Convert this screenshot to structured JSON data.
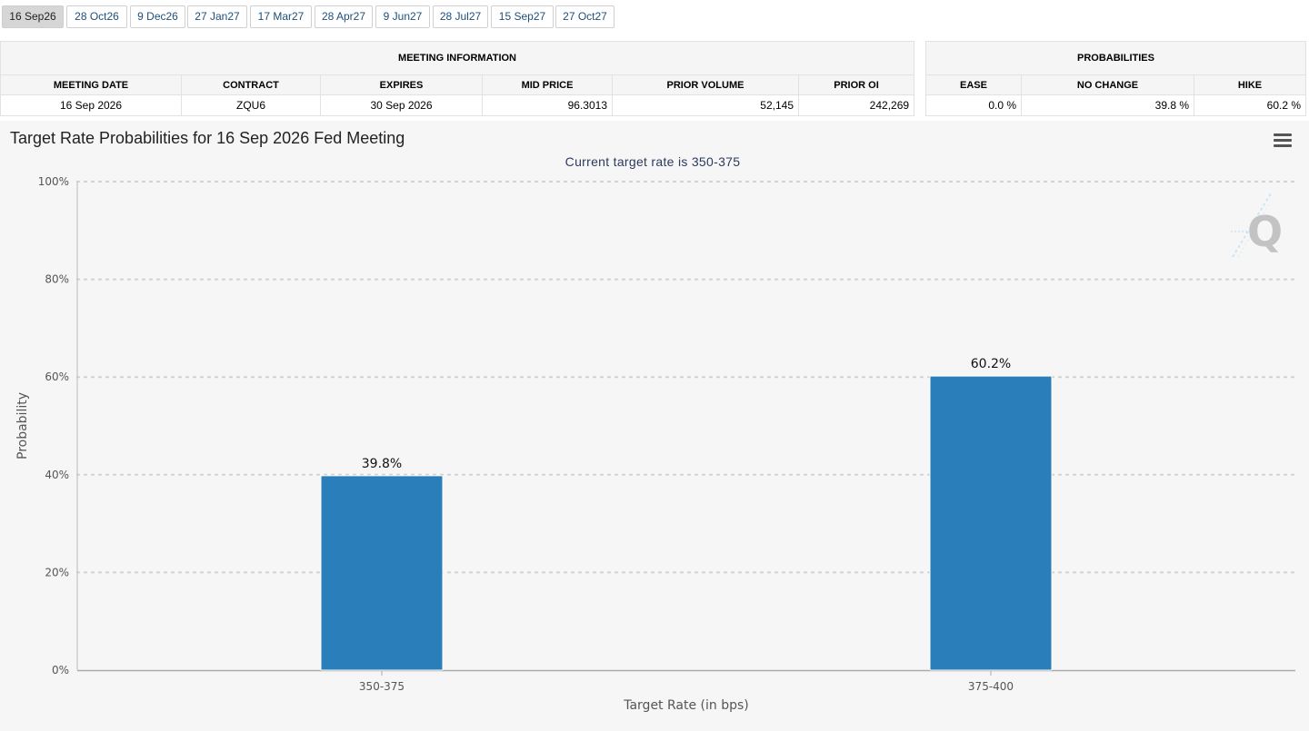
{
  "tabs": [
    {
      "label": "16 Sep26",
      "active": true
    },
    {
      "label": "28 Oct26",
      "active": false
    },
    {
      "label": "9 Dec26",
      "active": false
    },
    {
      "label": "27 Jan27",
      "active": false
    },
    {
      "label": "17 Mar27",
      "active": false
    },
    {
      "label": "28 Apr27",
      "active": false
    },
    {
      "label": "9 Jun27",
      "active": false
    },
    {
      "label": "28 Jul27",
      "active": false
    },
    {
      "label": "15 Sep27",
      "active": false
    },
    {
      "label": "27 Oct27",
      "active": false
    }
  ],
  "meeting_info": {
    "section_title": "MEETING INFORMATION",
    "headers": [
      "MEETING DATE",
      "CONTRACT",
      "EXPIRES",
      "MID PRICE",
      "PRIOR VOLUME",
      "PRIOR OI"
    ],
    "row": [
      "16 Sep 2026",
      "ZQU6",
      "30 Sep 2026",
      "96.3013",
      "52,145",
      "242,269"
    ]
  },
  "probabilities": {
    "section_title": "PROBABILITIES",
    "headers": [
      "EASE",
      "NO CHANGE",
      "HIKE"
    ],
    "row": [
      "0.0 %",
      "39.8 %",
      "60.2 %"
    ]
  },
  "chart": {
    "title": "Target Rate Probabilities for 16 Sep 2026 Fed Meeting",
    "subtitle": "Current target rate is 350-375",
    "menu_icon": "hamburger-menu-icon",
    "watermark_icon": "q-logo-icon"
  },
  "chart_data": {
    "type": "bar",
    "categories": [
      "350-375",
      "375-400"
    ],
    "values": [
      39.8,
      60.2
    ],
    "data_labels": [
      "39.8%",
      "60.2%"
    ],
    "xlabel": "Target Rate (in bps)",
    "ylabel": "Probability",
    "ylim": [
      0,
      100
    ],
    "yticks": [
      0,
      20,
      40,
      60,
      80,
      100
    ],
    "ytick_labels": [
      "0%",
      "20%",
      "40%",
      "60%",
      "80%",
      "100%"
    ],
    "grid": true,
    "bar_color": "#2a7fba"
  }
}
